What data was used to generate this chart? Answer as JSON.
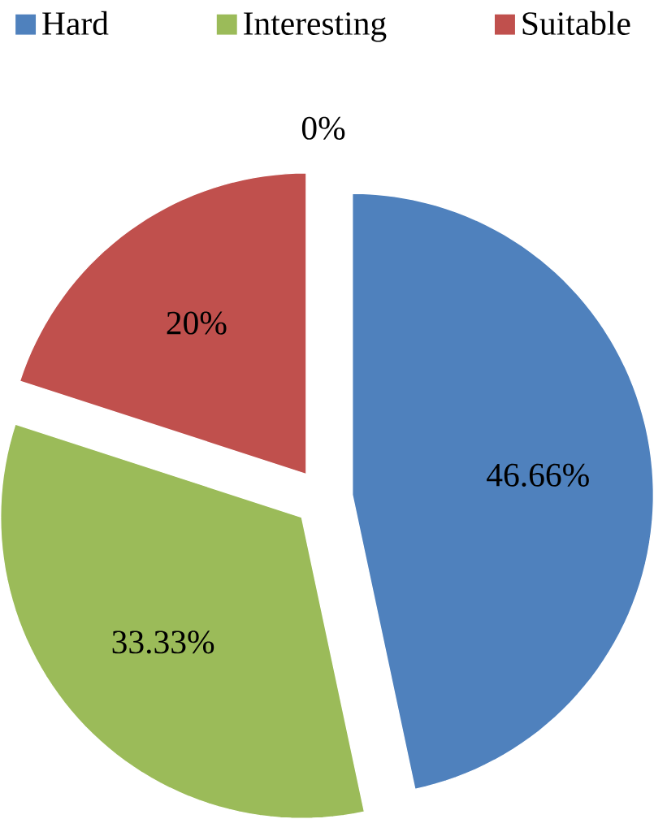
{
  "chart_data": {
    "type": "pie",
    "categories": [
      "Hard",
      "Interesting",
      "Suitable",
      null
    ],
    "values": [
      46.66,
      33.33,
      20,
      0
    ],
    "colors": [
      "#4f81bd",
      "#9bbb59",
      "#c0504d",
      "#8064a2"
    ],
    "value_labels": [
      "46.66%",
      "33.33%",
      "20%",
      "0%"
    ],
    "legend": "top"
  }
}
